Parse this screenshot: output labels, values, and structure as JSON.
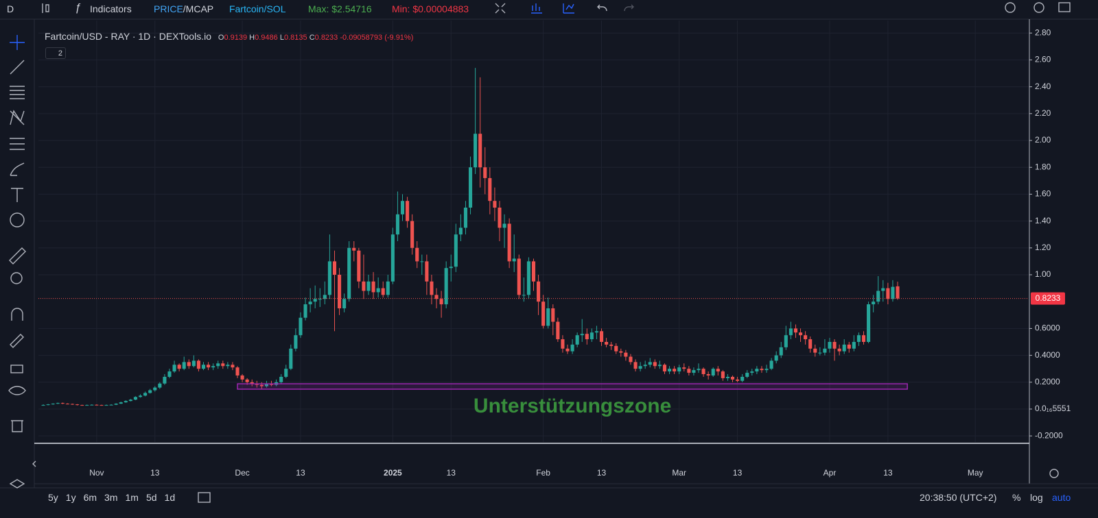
{
  "toolbar": {
    "interval": "D",
    "indicators": "Indicators",
    "mode": [
      "PRICE",
      "/MCAP"
    ],
    "pair": "Fartcoin/SOL",
    "max": "Max: $2.54716",
    "min": "Min: $0.00004883"
  },
  "legend": {
    "title": "Fartcoin/USD - RAY · 1D · DEXTools.io",
    "labels": [
      "O",
      "H",
      "L",
      "C"
    ],
    "change": "-0.09058793 (-9.91%)",
    "indicator_count": "2"
  },
  "ranges": [
    "5y",
    "1y",
    "6m",
    "3m",
    "1m",
    "5d",
    "1d"
  ],
  "footer": {
    "clock": "20:38:50 (UTC+2)",
    "percent": "%",
    "log": "log",
    "auto": "auto"
  },
  "chart_data": {
    "type": "candlestick",
    "up_color": "#26a69a",
    "down_color": "#ef5350",
    "open": [
      0.03,
      0.03,
      0.035,
      0.04,
      0.045,
      0.04,
      0.038,
      0.035,
      0.03,
      0.028,
      0.03,
      0.032,
      0.03,
      0.028,
      0.03,
      0.032,
      0.04,
      0.05,
      0.06,
      0.07,
      0.09,
      0.1,
      0.12,
      0.14,
      0.16,
      0.19,
      0.24,
      0.28,
      0.33,
      0.3,
      0.35,
      0.32,
      0.36,
      0.3,
      0.33,
      0.31,
      0.32,
      0.34,
      0.32,
      0.33,
      0.31,
      0.25,
      0.22,
      0.2,
      0.19,
      0.18,
      0.17,
      0.19,
      0.18,
      0.2,
      0.24,
      0.3,
      0.45,
      0.55,
      0.68,
      0.78,
      0.8,
      0.82,
      0.82,
      0.85,
      1.1,
      1,
      0.75,
      0.82,
      1.2,
      1.18,
      0.95,
      0.88,
      0.95,
      0.87,
      0.9,
      0.85,
      0.95,
      1.3,
      1.45,
      1.55,
      1.4,
      1.2,
      1.1,
      1.1,
      0.95,
      0.85,
      0.82,
      0.78,
      1.05,
      1.06,
      1.3,
      1.35,
      1.5,
      1.8,
      2.05,
      1.8,
      1.72,
      1.55,
      1.5,
      1.35,
      1.38,
      1.1,
      1.12,
      0.85,
      0.85,
      1.1,
      0.95,
      0.8,
      0.62,
      0.75,
      0.65,
      0.52,
      0.45,
      0.43,
      0.48,
      0.55,
      0.56,
      0.52,
      0.57,
      0.58,
      0.5,
      0.48,
      0.47,
      0.43,
      0.42,
      0.39,
      0.35,
      0.3,
      0.32,
      0.33,
      0.35,
      0.32,
      0.33,
      0.28,
      0.3,
      0.28,
      0.31,
      0.3,
      0.27,
      0.29,
      0.3,
      0.26,
      0.25,
      0.3,
      0.28,
      0.23,
      0.24,
      0.22,
      0.21,
      0.24,
      0.27,
      0.28,
      0.3,
      0.29,
      0.3,
      0.36,
      0.4,
      0.46,
      0.55,
      0.6,
      0.57,
      0.55,
      0.52,
      0.45,
      0.42,
      0.42,
      0.45,
      0.5,
      0.45,
      0.43,
      0.48,
      0.45,
      0.5,
      0.55,
      0.5,
      0.78,
      0.8,
      0.88,
      0.9,
      0.82,
      0.9139
    ],
    "high": [
      0.035,
      0.038,
      0.043,
      0.048,
      0.048,
      0.043,
      0.04,
      0.037,
      0.032,
      0.033,
      0.035,
      0.035,
      0.032,
      0.033,
      0.036,
      0.043,
      0.055,
      0.065,
      0.075,
      0.095,
      0.11,
      0.13,
      0.15,
      0.17,
      0.2,
      0.26,
      0.3,
      0.36,
      0.34,
      0.39,
      0.37,
      0.4,
      0.37,
      0.35,
      0.35,
      0.34,
      0.36,
      0.36,
      0.35,
      0.35,
      0.32,
      0.26,
      0.23,
      0.22,
      0.21,
      0.2,
      0.21,
      0.21,
      0.22,
      0.26,
      0.33,
      0.48,
      0.6,
      0.72,
      0.83,
      0.9,
      0.92,
      0.9,
      0.95,
      1.3,
      1.18,
      1.05,
      0.86,
      1.25,
      1.25,
      1.2,
      1.15,
      1,
      1.02,
      0.98,
      0.95,
      1,
      1.35,
      1.62,
      1.6,
      1.58,
      1.45,
      1.25,
      1.15,
      1.15,
      1,
      0.9,
      0.88,
      1.1,
      1.15,
      1.38,
      1.45,
      1.55,
      1.88,
      2.54,
      2.47,
      1.95,
      1.8,
      1.65,
      1.55,
      1.45,
      1.42,
      1.3,
      1.15,
      0.98,
      1.13,
      1.12,
      1,
      0.85,
      0.83,
      0.78,
      0.68,
      0.55,
      0.48,
      0.52,
      0.57,
      0.67,
      0.6,
      0.6,
      0.62,
      0.6,
      0.53,
      0.5,
      0.49,
      0.45,
      0.44,
      0.41,
      0.37,
      0.35,
      0.36,
      0.38,
      0.37,
      0.36,
      0.34,
      0.32,
      0.32,
      0.33,
      0.34,
      0.32,
      0.31,
      0.34,
      0.31,
      0.28,
      0.31,
      0.32,
      0.29,
      0.26,
      0.25,
      0.24,
      0.26,
      0.29,
      0.3,
      0.32,
      0.32,
      0.33,
      0.38,
      0.43,
      0.5,
      0.62,
      0.65,
      0.63,
      0.6,
      0.58,
      0.54,
      0.48,
      0.46,
      0.52,
      0.53,
      0.52,
      0.48,
      0.52,
      0.5,
      0.55,
      0.57,
      0.58,
      0.8,
      0.85,
      0.99,
      0.96,
      0.94,
      0.96,
      0.9486
    ],
    "low": [
      0.025,
      0.028,
      0.032,
      0.037,
      0.037,
      0.035,
      0.032,
      0.027,
      0.025,
      0.026,
      0.028,
      0.027,
      0.025,
      0.026,
      0.028,
      0.03,
      0.038,
      0.047,
      0.057,
      0.066,
      0.085,
      0.095,
      0.115,
      0.13,
      0.15,
      0.18,
      0.23,
      0.27,
      0.28,
      0.29,
      0.3,
      0.31,
      0.28,
      0.29,
      0.29,
      0.29,
      0.3,
      0.3,
      0.3,
      0.29,
      0.23,
      0.2,
      0.18,
      0.17,
      0.16,
      0.15,
      0.16,
      0.17,
      0.17,
      0.19,
      0.23,
      0.29,
      0.43,
      0.53,
      0.66,
      0.72,
      0.75,
      0.76,
      0.78,
      0.82,
      0.58,
      0.7,
      0.72,
      0.8,
      1.1,
      0.9,
      0.82,
      0.85,
      0.82,
      0.83,
      0.83,
      0.83,
      0.93,
      1.25,
      1.4,
      1.35,
      1.15,
      1.05,
      1,
      0.85,
      0.78,
      0.75,
      0.68,
      0.75,
      0.95,
      1.02,
      1.25,
      1.3,
      1.45,
      1.75,
      1.65,
      1.6,
      1.45,
      1.4,
      1.25,
      1.2,
      1.05,
      1.02,
      0.82,
      0.8,
      0.82,
      0.88,
      0.7,
      0.6,
      0.6,
      0.55,
      0.5,
      0.42,
      0.41,
      0.41,
      0.46,
      0.5,
      0.48,
      0.5,
      0.52,
      0.47,
      0.46,
      0.44,
      0.41,
      0.39,
      0.36,
      0.33,
      0.28,
      0.28,
      0.3,
      0.31,
      0.3,
      0.3,
      0.26,
      0.26,
      0.26,
      0.26,
      0.28,
      0.25,
      0.25,
      0.27,
      0.24,
      0.22,
      0.24,
      0.25,
      0.21,
      0.21,
      0.2,
      0.2,
      0.2,
      0.23,
      0.25,
      0.26,
      0.27,
      0.27,
      0.29,
      0.34,
      0.38,
      0.44,
      0.52,
      0.53,
      0.5,
      0.48,
      0.42,
      0.39,
      0.4,
      0.4,
      0.42,
      0.36,
      0.4,
      0.41,
      0.42,
      0.43,
      0.47,
      0.48,
      0.49,
      0.72,
      0.78,
      0.8,
      0.78,
      0.8,
      0.8135
    ],
    "close": [
      0.03,
      0.035,
      0.04,
      0.045,
      0.04,
      0.038,
      0.035,
      0.03,
      0.028,
      0.03,
      0.032,
      0.03,
      0.028,
      0.03,
      0.032,
      0.04,
      0.05,
      0.06,
      0.07,
      0.09,
      0.1,
      0.12,
      0.14,
      0.16,
      0.19,
      0.24,
      0.28,
      0.33,
      0.3,
      0.35,
      0.32,
      0.36,
      0.3,
      0.33,
      0.31,
      0.32,
      0.34,
      0.32,
      0.33,
      0.31,
      0.25,
      0.22,
      0.2,
      0.19,
      0.18,
      0.17,
      0.19,
      0.18,
      0.2,
      0.24,
      0.3,
      0.45,
      0.55,
      0.68,
      0.78,
      0.8,
      0.82,
      0.82,
      0.85,
      1.1,
      1,
      0.75,
      0.82,
      1.2,
      1.18,
      0.95,
      0.88,
      0.95,
      0.87,
      0.9,
      0.85,
      0.95,
      1.3,
      1.45,
      1.55,
      1.4,
      1.2,
      1.1,
      1.1,
      0.95,
      0.85,
      0.82,
      0.78,
      1.05,
      1.06,
      1.3,
      1.35,
      1.5,
      1.8,
      2.05,
      1.8,
      1.72,
      1.55,
      1.5,
      1.35,
      1.38,
      1.1,
      1.12,
      0.85,
      0.85,
      1.1,
      0.95,
      0.8,
      0.62,
      0.75,
      0.65,
      0.52,
      0.45,
      0.43,
      0.48,
      0.55,
      0.56,
      0.52,
      0.57,
      0.58,
      0.5,
      0.48,
      0.47,
      0.43,
      0.42,
      0.39,
      0.35,
      0.3,
      0.32,
      0.33,
      0.35,
      0.32,
      0.33,
      0.28,
      0.3,
      0.28,
      0.31,
      0.3,
      0.27,
      0.29,
      0.3,
      0.26,
      0.25,
      0.3,
      0.28,
      0.23,
      0.24,
      0.22,
      0.21,
      0.24,
      0.27,
      0.28,
      0.3,
      0.29,
      0.3,
      0.36,
      0.4,
      0.46,
      0.55,
      0.6,
      0.57,
      0.55,
      0.52,
      0.45,
      0.42,
      0.42,
      0.45,
      0.5,
      0.45,
      0.43,
      0.48,
      0.45,
      0.5,
      0.55,
      0.5,
      0.78,
      0.8,
      0.88,
      0.9,
      0.82,
      0.91,
      0.8233
    ],
    "xlim": [
      -1,
      203
    ],
    "xticks": [
      {
        "value": 11,
        "label": "Nov"
      },
      {
        "value": 23,
        "label": "13"
      },
      {
        "value": 41,
        "label": "Dec"
      },
      {
        "value": 53,
        "label": "13"
      },
      {
        "value": 72,
        "label": "2025"
      },
      {
        "value": 84,
        "label": "13"
      },
      {
        "value": 103,
        "label": "Feb"
      },
      {
        "value": 115,
        "label": "13"
      },
      {
        "value": 131,
        "label": "Mar"
      },
      {
        "value": 143,
        "label": "13"
      },
      {
        "value": 162,
        "label": "Apr"
      },
      {
        "value": 174,
        "label": "13"
      },
      {
        "value": 192,
        "label": "May"
      }
    ],
    "ylim": [
      -0.245,
      2.893
    ],
    "yticks": [
      {
        "value": 2.8,
        "label": "2.80"
      },
      {
        "value": 2.6,
        "label": "2.60"
      },
      {
        "value": 2.4,
        "label": "2.40"
      },
      {
        "value": 2.2,
        "label": "2.20"
      },
      {
        "value": 2,
        "label": "2.00"
      },
      {
        "value": 1.8,
        "label": "1.80"
      },
      {
        "value": 1.6,
        "label": "1.60"
      },
      {
        "value": 1.4,
        "label": "1.40"
      },
      {
        "value": 1.2,
        "label": "1.20"
      },
      {
        "value": 1,
        "label": "1.00"
      },
      {
        "value": 0.6,
        "label": "0.6000"
      },
      {
        "value": 0.4,
        "label": "0.4000"
      },
      {
        "value": 0.2,
        "label": "0.2000"
      },
      {
        "value": 0,
        "label": "0.0₁₆5551"
      },
      {
        "value": -0.2,
        "label": "-0.2000"
      }
    ],
    "grid": true,
    "zone": {
      "label": "Unterstützungszone",
      "x": [
        40,
        178
      ],
      "y": [
        0.148,
        0.188
      ],
      "color": "#9c27b0",
      "label_color": "#388e3c"
    }
  }
}
